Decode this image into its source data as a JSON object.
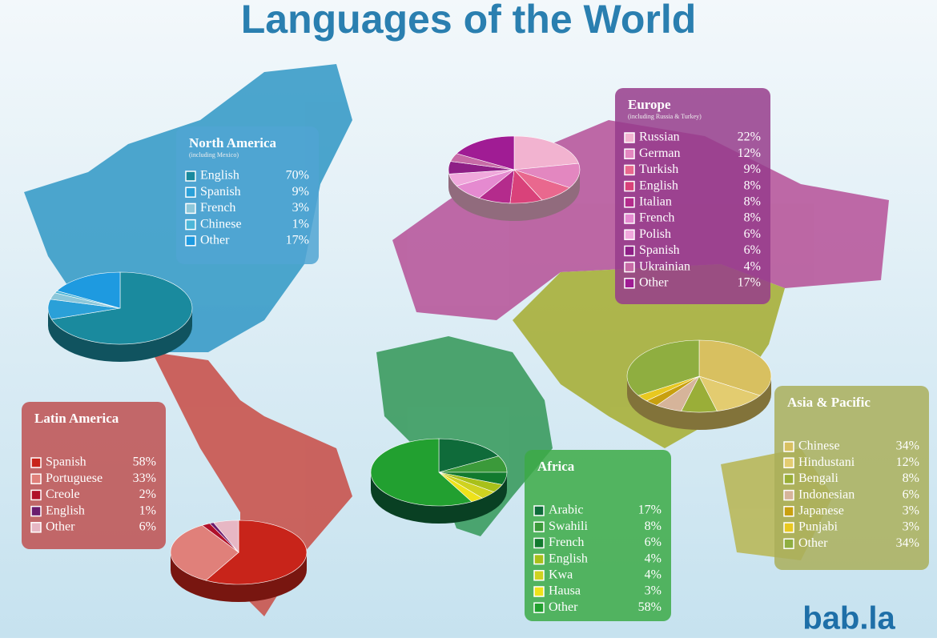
{
  "title": "Languages of the World",
  "logo": "bab.la",
  "chart_data": [
    {
      "type": "pie",
      "title": "North America",
      "subtitle": "(including Mexico)",
      "categories": [
        "English",
        "Spanish",
        "French",
        "Chinese",
        "Other"
      ],
      "values": [
        70,
        9,
        3,
        1,
        17
      ],
      "value_labels": [
        "70%",
        "9%",
        "3%",
        "1%",
        "17%"
      ],
      "colors": [
        "#1a8a9e",
        "#2aa0d8",
        "#8cc7da",
        "#4cb6d8",
        "#1e9ae0"
      ]
    },
    {
      "type": "pie",
      "title": "Europe",
      "subtitle": "(including Russia & Turkey)",
      "categories": [
        "Russian",
        "German",
        "Turkish",
        "English",
        "Italian",
        "French",
        "Polish",
        "Spanish",
        "Ukrainian",
        "Other"
      ],
      "values": [
        22,
        12,
        9,
        8,
        8,
        8,
        6,
        6,
        4,
        17
      ],
      "value_labels": [
        "22%",
        "12%",
        "9%",
        "8%",
        "8%",
        "8%",
        "6%",
        "6%",
        "4%",
        "17%"
      ],
      "colors": [
        "#f2b3d0",
        "#e387c0",
        "#e9688e",
        "#d9427a",
        "#b42b8c",
        "#e58ad0",
        "#f0a8dc",
        "#8e1f86",
        "#c76aa6",
        "#a01c94"
      ]
    },
    {
      "type": "pie",
      "title": "Latin America",
      "categories": [
        "Spanish",
        "Portuguese",
        "Creole",
        "English",
        "Other"
      ],
      "values": [
        58,
        33,
        2,
        1,
        6
      ],
      "value_labels": [
        "58%",
        "33%",
        "2%",
        "1%",
        "6%"
      ],
      "colors": [
        "#c8241a",
        "#e0807a",
        "#b0102a",
        "#6a1c6e",
        "#e7b7c4"
      ]
    },
    {
      "type": "pie",
      "title": "Africa",
      "categories": [
        "Arabic",
        "Swahili",
        "French",
        "English",
        "Kwa",
        "Hausa",
        "Other"
      ],
      "values": [
        17,
        8,
        6,
        4,
        4,
        3,
        58
      ],
      "value_labels": [
        "17%",
        "8%",
        "6%",
        "4%",
        "4%",
        "3%",
        "58%"
      ],
      "colors": [
        "#0f6b3a",
        "#3b9a3a",
        "#127a2e",
        "#a8c01a",
        "#cfd220",
        "#eee21a",
        "#22a030"
      ]
    },
    {
      "type": "pie",
      "title": "Asia & Pacific",
      "categories": [
        "Chinese",
        "Hindustani",
        "Bengali",
        "Indonesian",
        "Japanese",
        "Punjabi",
        "Other"
      ],
      "values": [
        34,
        12,
        8,
        6,
        3,
        3,
        34
      ],
      "value_labels": [
        "34%",
        "12%",
        "8%",
        "6%",
        "3%",
        "3%",
        "34%"
      ],
      "colors": [
        "#d8c060",
        "#e3cc70",
        "#9aae38",
        "#d6b49a",
        "#c8a010",
        "#e8c820",
        "#8fae40"
      ]
    }
  ]
}
